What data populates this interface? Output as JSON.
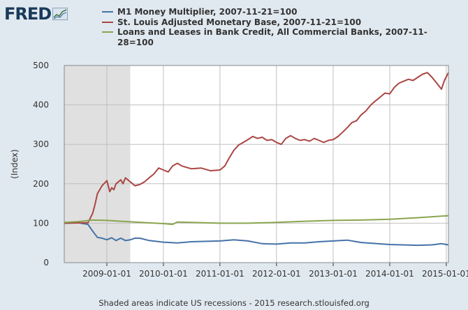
{
  "logo": {
    "text": "FRED"
  },
  "footer": {
    "text": "Shaded areas indicate US recessions - 2015 research.stlouisfed.org"
  },
  "chart_data": {
    "type": "line",
    "ylabel": "(Index)",
    "ylim": [
      0,
      500
    ],
    "xlim": [
      "2008-04-01",
      "2015-01-15"
    ],
    "yticks": [
      0,
      100,
      200,
      300,
      400,
      500
    ],
    "xticks": [
      "2009-01-01",
      "2010-01-01",
      "2011-01-01",
      "2012-01-01",
      "2013-01-01",
      "2014-01-01",
      "2015-01-01"
    ],
    "grid": true,
    "legend_position": "top",
    "recession_shading": {
      "start": "2008-04-01",
      "end": "2009-06-01",
      "color": "#e0e0e0"
    },
    "series": [
      {
        "name": "M1 Money Multiplier, 2007-11-21=100",
        "color": "#4572a7",
        "points": [
          [
            "2008-04-01",
            100
          ],
          [
            "2008-07-01",
            101
          ],
          [
            "2008-09-01",
            97
          ],
          [
            "2008-10-01",
            80
          ],
          [
            "2008-11-01",
            64
          ],
          [
            "2008-12-01",
            62
          ],
          [
            "2009-01-01",
            58
          ],
          [
            "2009-02-01",
            63
          ],
          [
            "2009-03-01",
            56
          ],
          [
            "2009-04-01",
            62
          ],
          [
            "2009-05-01",
            56
          ],
          [
            "2009-06-01",
            58
          ],
          [
            "2009-07-01",
            62
          ],
          [
            "2009-08-01",
            62
          ],
          [
            "2009-10-01",
            56
          ],
          [
            "2010-01-01",
            52
          ],
          [
            "2010-04-01",
            50
          ],
          [
            "2010-07-01",
            53
          ],
          [
            "2011-01-01",
            55
          ],
          [
            "2011-04-01",
            58
          ],
          [
            "2011-07-01",
            55
          ],
          [
            "2011-10-01",
            48
          ],
          [
            "2012-01-01",
            47
          ],
          [
            "2012-04-01",
            50
          ],
          [
            "2012-07-01",
            50
          ],
          [
            "2012-10-01",
            53
          ],
          [
            "2013-01-01",
            55
          ],
          [
            "2013-04-01",
            57
          ],
          [
            "2013-07-01",
            51
          ],
          [
            "2014-01-01",
            46
          ],
          [
            "2014-07-01",
            44
          ],
          [
            "2014-10-01",
            45
          ],
          [
            "2014-12-01",
            48
          ],
          [
            "2015-01-15",
            45
          ]
        ]
      },
      {
        "name": "St. Louis Adjusted Monetary Base, 2007-11-21=100",
        "color": "#aa4643",
        "points": [
          [
            "2008-04-01",
            100
          ],
          [
            "2008-09-01",
            101
          ],
          [
            "2008-10-01",
            125
          ],
          [
            "2008-10-15",
            145
          ],
          [
            "2008-11-01",
            175
          ],
          [
            "2008-12-01",
            195
          ],
          [
            "2009-01-01",
            208
          ],
          [
            "2009-01-20",
            180
          ],
          [
            "2009-02-01",
            190
          ],
          [
            "2009-02-15",
            185
          ],
          [
            "2009-03-01",
            200
          ],
          [
            "2009-04-01",
            210
          ],
          [
            "2009-04-15",
            200
          ],
          [
            "2009-05-01",
            215
          ],
          [
            "2009-06-01",
            205
          ],
          [
            "2009-07-01",
            195
          ],
          [
            "2009-08-01",
            198
          ],
          [
            "2009-09-01",
            205
          ],
          [
            "2009-10-01",
            215
          ],
          [
            "2009-11-01",
            225
          ],
          [
            "2009-12-01",
            240
          ],
          [
            "2010-01-01",
            235
          ],
          [
            "2010-02-01",
            230
          ],
          [
            "2010-03-01",
            245
          ],
          [
            "2010-04-01",
            252
          ],
          [
            "2010-05-01",
            245
          ],
          [
            "2010-07-01",
            238
          ],
          [
            "2010-09-01",
            240
          ],
          [
            "2010-11-01",
            233
          ],
          [
            "2011-01-01",
            235
          ],
          [
            "2011-02-01",
            245
          ],
          [
            "2011-03-01",
            265
          ],
          [
            "2011-04-01",
            285
          ],
          [
            "2011-05-01",
            298
          ],
          [
            "2011-06-01",
            305
          ],
          [
            "2011-07-01",
            312
          ],
          [
            "2011-08-01",
            320
          ],
          [
            "2011-09-01",
            315
          ],
          [
            "2011-10-01",
            318
          ],
          [
            "2011-11-01",
            310
          ],
          [
            "2011-12-01",
            312
          ],
          [
            "2012-01-01",
            305
          ],
          [
            "2012-02-01",
            300
          ],
          [
            "2012-03-01",
            315
          ],
          [
            "2012-04-01",
            322
          ],
          [
            "2012-05-01",
            315
          ],
          [
            "2012-06-01",
            310
          ],
          [
            "2012-07-01",
            312
          ],
          [
            "2012-08-01",
            308
          ],
          [
            "2012-09-01",
            315
          ],
          [
            "2012-10-01",
            310
          ],
          [
            "2012-11-01",
            305
          ],
          [
            "2012-12-01",
            310
          ],
          [
            "2013-01-01",
            312
          ],
          [
            "2013-02-01",
            320
          ],
          [
            "2013-03-01",
            330
          ],
          [
            "2013-04-01",
            342
          ],
          [
            "2013-05-01",
            355
          ],
          [
            "2013-06-01",
            360
          ],
          [
            "2013-07-01",
            375
          ],
          [
            "2013-08-01",
            385
          ],
          [
            "2013-09-01",
            400
          ],
          [
            "2013-10-01",
            410
          ],
          [
            "2013-11-01",
            420
          ],
          [
            "2013-12-01",
            430
          ],
          [
            "2014-01-01",
            428
          ],
          [
            "2014-02-01",
            445
          ],
          [
            "2014-03-01",
            455
          ],
          [
            "2014-04-01",
            460
          ],
          [
            "2014-05-01",
            465
          ],
          [
            "2014-06-01",
            462
          ],
          [
            "2014-07-01",
            470
          ],
          [
            "2014-08-01",
            478
          ],
          [
            "2014-09-01",
            482
          ],
          [
            "2014-10-01",
            470
          ],
          [
            "2014-11-01",
            455
          ],
          [
            "2014-12-01",
            440
          ],
          [
            "2014-12-20",
            462
          ],
          [
            "2015-01-15",
            482
          ]
        ]
      },
      {
        "name": "Loans and Leases in Bank Credit, All Commercial Banks, 2007-11-28=100",
        "color": "#89a54e",
        "points": [
          [
            "2008-04-01",
            102
          ],
          [
            "2008-07-01",
            104
          ],
          [
            "2008-10-01",
            108
          ],
          [
            "2009-01-01",
            107
          ],
          [
            "2009-04-01",
            105
          ],
          [
            "2009-07-01",
            103
          ],
          [
            "2010-01-01",
            99
          ],
          [
            "2010-03-01",
            97
          ],
          [
            "2010-04-01",
            103
          ],
          [
            "2011-01-01",
            100
          ],
          [
            "2011-07-01",
            100
          ],
          [
            "2012-01-01",
            102
          ],
          [
            "2012-07-01",
            105
          ],
          [
            "2013-01-01",
            107
          ],
          [
            "2013-07-01",
            108
          ],
          [
            "2014-01-01",
            110
          ],
          [
            "2014-07-01",
            114
          ],
          [
            "2015-01-15",
            119
          ]
        ]
      }
    ]
  }
}
